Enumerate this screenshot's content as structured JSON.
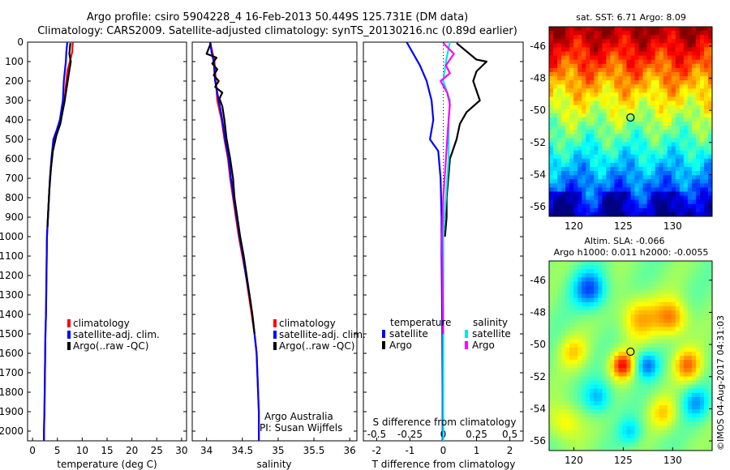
{
  "header": {
    "line1": "Argo profile: csiro 5904228_4 16-Feb-2013 50.449S 125.731E (DM data)",
    "line2": "Climatology: CARS2009. Satellite-adjusted climatology: synTS_20130216.nc (0.89d earlier)"
  },
  "depth_ticks": [
    "0",
    "100",
    "200",
    "300",
    "400",
    "500",
    "600",
    "700",
    "800",
    "900",
    "1000",
    "1100",
    "1200",
    "1300",
    "1400",
    "1500",
    "1600",
    "1700",
    "1800",
    "1900",
    "2000"
  ],
  "credits": {
    "line1": "Argo Australia",
    "line2": "PI: Susan Wijffels"
  },
  "vertical_stamp": "©IMOS 04-Aug-2017 04:31:03",
  "colors": {
    "climatology": "#ff0000",
    "satellite_adj": "#0000ff",
    "argo": "#000000",
    "cyan": "#00e5e5",
    "magenta": "#ff00ff",
    "marker": "#000000"
  },
  "chart_data": [
    {
      "type": "line",
      "panel": "temperature",
      "xlabel": "temperature (deg C)",
      "xticks": [
        "0",
        "5",
        "10",
        "15",
        "20",
        "25",
        "30"
      ],
      "xlim": [
        -1,
        31
      ],
      "ylim": [
        2050,
        0
      ],
      "y_reversed": true,
      "legend": [
        "climatology",
        "satellite-adj. clim.",
        "Argo(..raw -QC)"
      ],
      "legend_placement": "lower-middle",
      "series": [
        {
          "name": "climatology",
          "color": "#ff0000",
          "points": [
            [
              8.1,
              0
            ],
            [
              8.0,
              50
            ],
            [
              7.5,
              100
            ],
            [
              7.0,
              150
            ],
            [
              6.8,
              200
            ],
            [
              6.4,
              300
            ],
            [
              5.6,
              400
            ],
            [
              5.0,
              450
            ],
            [
              4.3,
              500
            ],
            [
              3.9,
              600
            ],
            [
              3.5,
              700
            ],
            [
              3.3,
              800
            ],
            [
              3.1,
              900
            ],
            [
              2.9,
              1000
            ],
            [
              2.8,
              1200
            ],
            [
              2.7,
              1400
            ],
            [
              2.6,
              1500
            ],
            [
              2.5,
              1700
            ],
            [
              2.4,
              1900
            ],
            [
              2.3,
              2000
            ],
            [
              2.3,
              2050
            ]
          ]
        },
        {
          "name": "satellite-adj. clim.",
          "color": "#0000ff",
          "points": [
            [
              7.0,
              0
            ],
            [
              6.8,
              50
            ],
            [
              6.7,
              100
            ],
            [
              6.5,
              150
            ],
            [
              6.3,
              200
            ],
            [
              6.1,
              300
            ],
            [
              5.5,
              400
            ],
            [
              4.9,
              450
            ],
            [
              4.2,
              500
            ],
            [
              3.8,
              600
            ],
            [
              3.5,
              700
            ],
            [
              3.3,
              800
            ],
            [
              3.1,
              900
            ],
            [
              2.9,
              1000
            ],
            [
              2.8,
              1200
            ],
            [
              2.7,
              1400
            ],
            [
              2.6,
              1500
            ],
            [
              2.5,
              1700
            ],
            [
              2.4,
              1900
            ],
            [
              2.3,
              2000
            ],
            [
              2.3,
              2050
            ]
          ]
        },
        {
          "name": "Argo(..raw -QC)",
          "color": "#000000",
          "points": [
            [
              7.6,
              5
            ],
            [
              7.4,
              60
            ],
            [
              7.7,
              100
            ],
            [
              7.5,
              130
            ],
            [
              7.2,
              180
            ],
            [
              6.9,
              230
            ],
            [
              6.6,
              280
            ],
            [
              6.5,
              300
            ],
            [
              6.1,
              350
            ],
            [
              5.6,
              420
            ],
            [
              4.8,
              480
            ],
            [
              4.1,
              560
            ],
            [
              3.7,
              650
            ],
            [
              3.4,
              750
            ],
            [
              3.2,
              850
            ],
            [
              3.0,
              950
            ]
          ]
        }
      ]
    },
    {
      "type": "line",
      "panel": "salinity",
      "xlabel": "salinity",
      "xticks": [
        "34",
        "34.5",
        "35",
        "35.5",
        "36"
      ],
      "xlim": [
        33.8,
        36.1
      ],
      "ylim": [
        2050,
        0
      ],
      "y_reversed": true,
      "legend": [
        "climatology",
        "satellite-adj. clim.",
        "Argo(..raw -QC)"
      ],
      "legend_placement": "lower-middle",
      "series": [
        {
          "name": "climatology",
          "color": "#ff0000",
          "points": [
            [
              34.05,
              0
            ],
            [
              34.08,
              50
            ],
            [
              34.11,
              100
            ],
            [
              34.13,
              200
            ],
            [
              34.15,
              300
            ],
            [
              34.21,
              400
            ],
            [
              34.25,
              500
            ],
            [
              34.3,
              600
            ],
            [
              34.33,
              700
            ],
            [
              34.37,
              800
            ],
            [
              34.41,
              900
            ],
            [
              34.45,
              1000
            ],
            [
              34.5,
              1100
            ],
            [
              34.55,
              1200
            ],
            [
              34.59,
              1300
            ],
            [
              34.63,
              1400
            ],
            [
              34.67,
              1500
            ],
            [
              34.7,
              1600
            ],
            [
              34.71,
              1700
            ],
            [
              34.72,
              1800
            ],
            [
              34.73,
              1900
            ],
            [
              34.73,
              2000
            ],
            [
              34.73,
              2050
            ]
          ]
        },
        {
          "name": "satellite-adj. clim.",
          "color": "#0000ff",
          "points": [
            [
              34.05,
              0
            ],
            [
              34.07,
              50
            ],
            [
              34.1,
              100
            ],
            [
              34.12,
              200
            ],
            [
              34.17,
              300
            ],
            [
              34.22,
              400
            ],
            [
              34.26,
              500
            ],
            [
              34.31,
              600
            ],
            [
              34.34,
              700
            ],
            [
              34.38,
              800
            ],
            [
              34.42,
              900
            ],
            [
              34.46,
              1000
            ],
            [
              34.51,
              1100
            ],
            [
              34.55,
              1200
            ],
            [
              34.6,
              1300
            ],
            [
              34.64,
              1400
            ],
            [
              34.67,
              1500
            ],
            [
              34.7,
              1600
            ],
            [
              34.71,
              1700
            ],
            [
              34.72,
              1800
            ],
            [
              34.73,
              1900
            ],
            [
              34.73,
              2000
            ],
            [
              34.73,
              2050
            ]
          ]
        },
        {
          "name": "Argo(..raw -QC)",
          "color": "#000000",
          "points": [
            [
              34.06,
              5
            ],
            [
              34.0,
              60
            ],
            [
              34.14,
              80
            ],
            [
              34.08,
              110
            ],
            [
              34.15,
              140
            ],
            [
              34.1,
              170
            ],
            [
              34.17,
              200
            ],
            [
              34.12,
              230
            ],
            [
              34.22,
              260
            ],
            [
              34.18,
              290
            ],
            [
              34.22,
              330
            ],
            [
              34.25,
              400
            ],
            [
              34.28,
              500
            ],
            [
              34.33,
              600
            ],
            [
              34.37,
              700
            ],
            [
              34.39,
              800
            ],
            [
              34.43,
              900
            ],
            [
              34.47,
              1000
            ],
            [
              34.52,
              1100
            ],
            [
              34.56,
              1200
            ],
            [
              34.6,
              1300
            ],
            [
              34.64,
              1400
            ],
            [
              34.67,
              1500
            ]
          ]
        }
      ]
    },
    {
      "type": "line",
      "panel": "difference",
      "xlabel": "T difference from climatology",
      "top_label": "S difference from climatology",
      "xticks": [
        "-2",
        "-1",
        "0",
        "1",
        "2"
      ],
      "top_xticks": [
        "-0.5",
        "-0.25",
        "0",
        "0.25",
        "0.5"
      ],
      "xlim": [
        -2.4,
        2.4
      ],
      "ylim": [
        2050,
        0
      ],
      "y_reversed": true,
      "legend_headers": [
        "temperature",
        "salinity"
      ],
      "legend": [
        "satellite",
        "Argo",
        "satellite",
        "Argo"
      ],
      "legend_placement": "lower-middle",
      "series": [
        {
          "name": "satellite",
          "color": "#0000ff",
          "variable": "T",
          "points": [
            [
              -1.1,
              0
            ],
            [
              -0.9,
              60
            ],
            [
              -0.7,
              120
            ],
            [
              -0.5,
              200
            ],
            [
              -0.35,
              300
            ],
            [
              -0.3,
              400
            ],
            [
              -0.4,
              500
            ],
            [
              -0.15,
              560
            ],
            [
              -0.08,
              700
            ],
            [
              -0.05,
              900
            ],
            [
              -0.05,
              1100
            ],
            [
              -0.04,
              1300
            ],
            [
              -0.03,
              1500
            ],
            [
              -0.02,
              1800
            ],
            [
              -0.02,
              2050
            ]
          ]
        },
        {
          "name": "Argo",
          "color": "#000000",
          "variable": "T",
          "points": [
            [
              0.4,
              5
            ],
            [
              1.0,
              90
            ],
            [
              1.3,
              100
            ],
            [
              1.0,
              150
            ],
            [
              0.9,
              200
            ],
            [
              1.1,
              300
            ],
            [
              0.7,
              360
            ],
            [
              0.5,
              420
            ],
            [
              0.4,
              500
            ],
            [
              0.2,
              600
            ],
            [
              0.15,
              700
            ],
            [
              0.1,
              800
            ],
            [
              0.1,
              900
            ],
            [
              0.05,
              1000
            ]
          ]
        },
        {
          "name": "satellite",
          "color": "#00e5e5",
          "variable": "S",
          "points": [
            [
              0.05,
              0
            ],
            [
              0.02,
              100
            ],
            [
              0.0,
              200
            ],
            [
              0.05,
              300
            ],
            [
              0.04,
              400
            ],
            [
              0.04,
              600
            ],
            [
              0.02,
              800
            ],
            [
              0.0,
              1000
            ],
            [
              0.0,
              1500
            ],
            [
              0.0,
              2050
            ]
          ]
        },
        {
          "name": "Argo",
          "color": "#ff00ff",
          "variable": "S",
          "points": [
            [
              0.0,
              5
            ],
            [
              0.08,
              60
            ],
            [
              0.02,
              120
            ],
            [
              0.05,
              160
            ],
            [
              -0.02,
              200
            ],
            [
              0.03,
              260
            ],
            [
              0.05,
              320
            ],
            [
              0.04,
              400
            ],
            [
              0.03,
              500
            ],
            [
              0.02,
              600
            ],
            [
              0.0,
              800
            ],
            [
              -0.01,
              1000
            ],
            [
              0.0,
              1500
            ]
          ]
        }
      ]
    },
    {
      "type": "heatmap",
      "panel": "sst_map",
      "title": "sat. SST: 6.71  Argo: 8.09",
      "xticks": [
        "120",
        "125",
        "130"
      ],
      "yticks": [
        "-46",
        "-48",
        "-50",
        "-52",
        "-54",
        "-56"
      ],
      "xlim": [
        117.5,
        134
      ],
      "ylim": [
        -56.6,
        -44.8
      ],
      "marker": {
        "lon": 125.731,
        "lat": -50.449
      },
      "color_scale": "jet"
    },
    {
      "type": "heatmap",
      "panel": "sla_map",
      "title_line1": "Altim. SLA: -0.066",
      "title_line2": "Argo h1000: 0.011  h2000: -0.0055",
      "xticks": [
        "120",
        "125",
        "130"
      ],
      "yticks": [
        "-46",
        "-48",
        "-50",
        "-52",
        "-54",
        "-56"
      ],
      "xlim": [
        117.5,
        134
      ],
      "ylim": [
        -56.6,
        -44.8
      ],
      "marker": {
        "lon": 125.731,
        "lat": -50.449
      },
      "color_scale": "jet"
    }
  ]
}
